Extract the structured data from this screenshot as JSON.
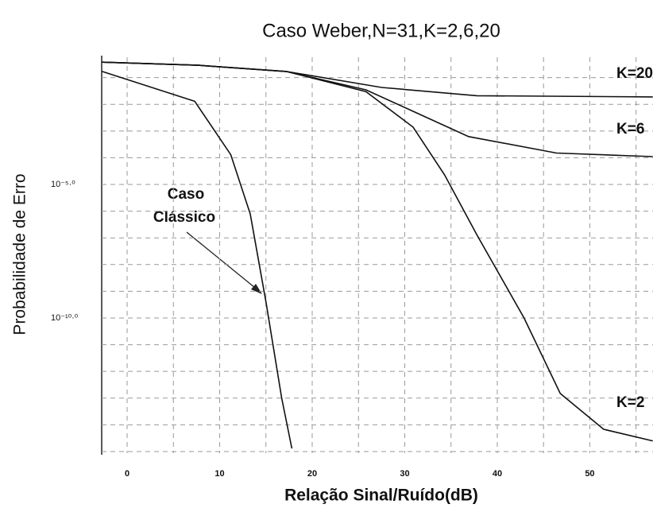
{
  "chart_data": {
    "type": "line",
    "title": "Caso Weber,N=31,K=2,6,20",
    "x_label": "Relação Sinal/Ruído(dB)",
    "y_label": "Probabilidade de Erro",
    "log_y": true,
    "grid": true,
    "xlim": [
      -2.75,
      56.83
    ],
    "ylim": [
      8.7e-16,
      0.58
    ],
    "xticks": [
      0,
      10,
      20,
      30,
      40,
      50
    ],
    "xminor": [
      -5,
      5,
      15,
      25,
      35,
      45,
      55
    ],
    "yticks": [
      {
        "value": 1e-05,
        "label": "10⁻⁵·⁰"
      },
      {
        "value": 1e-10,
        "label": "10⁻¹⁰·⁰"
      }
    ],
    "yminor": [
      0.1,
      0.01,
      0.001,
      0.0001,
      1e-06,
      1e-07,
      1e-08,
      1e-09,
      1e-11,
      1e-12,
      1e-13,
      1e-14,
      1e-15
    ],
    "series": [
      {
        "name": "Caso Clássico",
        "color": "#111111",
        "x": [
          -2.7,
          7.3,
          11.2,
          13.3,
          15.0,
          16.7,
          17.8
        ],
        "values": [
          0.17,
          0.013,
          0.00013,
          7.9e-07,
          4e-10,
          1e-13,
          1.3e-15
        ]
      },
      {
        "name": "K=20",
        "color": "#111111",
        "x": [
          -2.7,
          7.7,
          17.2,
          27.5,
          37.8,
          56.8
        ],
        "values": [
          0.38,
          0.29,
          0.17,
          0.043,
          0.021,
          0.019
        ]
      },
      {
        "name": "K=6",
        "color": "#111111",
        "x": [
          -2.7,
          7.7,
          17.2,
          25.8,
          30.9,
          36.9,
          46.4,
          56.8
        ],
        "values": [
          0.38,
          0.29,
          0.17,
          0.035,
          0.0055,
          0.00062,
          0.00015,
          0.00011
        ]
      },
      {
        "name": "K=2",
        "color": "#111111",
        "x": [
          -2.7,
          7.7,
          17.2,
          25.8,
          30.9,
          34.3,
          37.8,
          42.9,
          46.8,
          51.5,
          56.8
        ],
        "values": [
          0.38,
          0.29,
          0.17,
          0.03,
          0.0014,
          2.3e-05,
          1.3e-07,
          1e-10,
          1.5e-13,
          6.8e-15,
          2.5e-15
        ]
      }
    ],
    "annotations": [
      "Caso",
      "Clássico"
    ]
  }
}
